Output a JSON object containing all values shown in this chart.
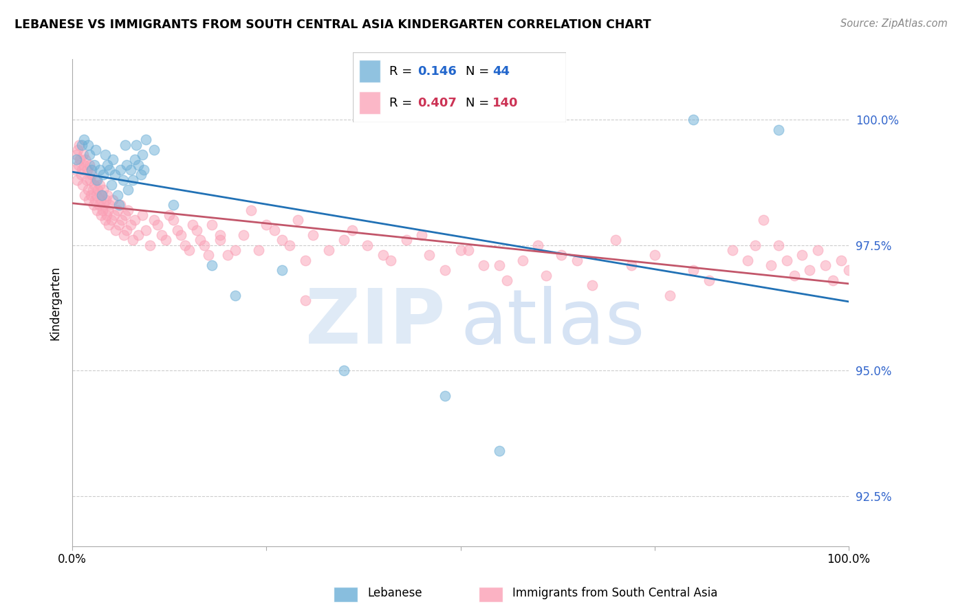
{
  "title": "LEBANESE VS IMMIGRANTS FROM SOUTH CENTRAL ASIA KINDERGARTEN CORRELATION CHART",
  "source": "Source: ZipAtlas.com",
  "ylabel": "Kindergarten",
  "y_ticks": [
    92.5,
    95.0,
    97.5,
    100.0
  ],
  "y_tick_labels": [
    "92.5%",
    "95.0%",
    "97.5%",
    "100.0%"
  ],
  "x_min": 0.0,
  "x_max": 100.0,
  "y_min": 91.5,
  "y_max": 101.2,
  "legend_blue_r": "0.146",
  "legend_blue_n": "44",
  "legend_pink_r": "0.407",
  "legend_pink_n": "140",
  "blue_color": "#6baed6",
  "pink_color": "#fa9fb5",
  "line_blue_color": "#2171b5",
  "line_pink_color": "#c2566a",
  "blue_scatter_x": [
    0.5,
    1.2,
    1.5,
    2.0,
    2.2,
    2.5,
    2.8,
    3.0,
    3.2,
    3.5,
    3.8,
    4.0,
    4.2,
    4.5,
    4.8,
    5.0,
    5.2,
    5.5,
    5.8,
    6.0,
    6.2,
    6.5,
    6.8,
    7.0,
    7.2,
    7.5,
    7.8,
    8.0,
    8.2,
    8.5,
    8.8,
    9.0,
    9.2,
    9.5,
    10.5,
    13.0,
    18.0,
    21.0,
    27.0,
    35.0,
    48.0,
    55.0,
    80.0,
    91.0
  ],
  "blue_scatter_y": [
    99.2,
    99.5,
    99.6,
    99.5,
    99.3,
    99.0,
    99.1,
    99.4,
    98.8,
    99.0,
    98.5,
    98.9,
    99.3,
    99.1,
    99.0,
    98.7,
    99.2,
    98.9,
    98.5,
    98.3,
    99.0,
    98.8,
    99.5,
    99.1,
    98.6,
    99.0,
    98.8,
    99.2,
    99.5,
    99.1,
    98.9,
    99.3,
    99.0,
    99.6,
    99.4,
    98.3,
    97.1,
    96.5,
    97.0,
    95.0,
    94.5,
    93.4,
    100.0,
    99.8
  ],
  "pink_scatter_x": [
    0.3,
    0.5,
    0.6,
    0.7,
    0.8,
    0.9,
    1.0,
    1.1,
    1.2,
    1.3,
    1.4,
    1.5,
    1.6,
    1.7,
    1.8,
    1.9,
    2.0,
    2.1,
    2.2,
    2.3,
    2.4,
    2.5,
    2.6,
    2.7,
    2.8,
    2.9,
    3.0,
    3.1,
    3.2,
    3.3,
    3.4,
    3.5,
    3.6,
    3.7,
    3.8,
    3.9,
    4.0,
    4.1,
    4.2,
    4.3,
    4.4,
    4.5,
    4.6,
    4.7,
    4.8,
    5.0,
    5.2,
    5.4,
    5.6,
    5.8,
    6.0,
    6.2,
    6.4,
    6.6,
    6.8,
    7.0,
    7.2,
    7.5,
    7.8,
    8.0,
    8.5,
    9.0,
    9.5,
    10.0,
    11.0,
    12.0,
    13.0,
    14.0,
    15.0,
    16.0,
    17.0,
    18.0,
    19.0,
    20.0,
    22.0,
    24.0,
    26.0,
    28.0,
    30.0,
    35.0,
    40.0,
    45.0,
    50.0,
    55.0,
    60.0,
    65.0,
    70.0,
    75.0,
    80.0,
    85.0,
    90.0,
    91.0,
    92.0,
    93.0,
    94.0,
    95.0,
    96.0,
    97.0,
    98.0,
    99.0,
    100.0,
    10.5,
    11.5,
    12.5,
    13.5,
    14.5,
    15.5,
    16.5,
    17.5,
    19.0,
    21.0,
    23.0,
    25.0,
    27.0,
    29.0,
    31.0,
    33.0,
    36.0,
    38.0,
    41.0,
    43.0,
    46.0,
    48.0,
    51.0,
    53.0,
    56.0,
    58.0,
    61.0,
    63.0,
    67.0,
    72.0,
    77.0,
    82.0,
    87.0,
    88.0,
    89.0,
    30.0
  ],
  "pink_scatter_y": [
    99.0,
    99.3,
    98.8,
    99.4,
    99.1,
    99.5,
    99.2,
    98.9,
    99.0,
    98.7,
    99.3,
    99.1,
    98.5,
    99.2,
    98.8,
    99.0,
    98.6,
    98.4,
    99.1,
    98.8,
    98.5,
    98.9,
    98.6,
    98.3,
    98.7,
    98.4,
    98.8,
    98.5,
    98.2,
    98.6,
    98.3,
    98.7,
    98.4,
    98.1,
    98.5,
    98.2,
    98.6,
    98.3,
    98.0,
    98.4,
    98.1,
    98.5,
    98.2,
    97.9,
    98.3,
    98.0,
    98.4,
    98.1,
    97.8,
    98.2,
    97.9,
    98.3,
    98.0,
    97.7,
    98.1,
    97.8,
    98.2,
    97.9,
    97.6,
    98.0,
    97.7,
    98.1,
    97.8,
    97.5,
    97.9,
    97.6,
    98.0,
    97.7,
    97.4,
    97.8,
    97.5,
    97.9,
    97.6,
    97.3,
    97.7,
    97.4,
    97.8,
    97.5,
    97.2,
    97.6,
    97.3,
    97.7,
    97.4,
    97.1,
    97.5,
    97.2,
    97.6,
    97.3,
    97.0,
    97.4,
    97.1,
    97.5,
    97.2,
    96.9,
    97.3,
    97.0,
    97.4,
    97.1,
    96.8,
    97.2,
    97.0,
    98.0,
    97.7,
    98.1,
    97.8,
    97.5,
    97.9,
    97.6,
    97.3,
    97.7,
    97.4,
    98.2,
    97.9,
    97.6,
    98.0,
    97.7,
    97.4,
    97.8,
    97.5,
    97.2,
    97.6,
    97.3,
    97.0,
    97.4,
    97.1,
    96.8,
    97.2,
    96.9,
    97.3,
    96.7,
    97.1,
    96.5,
    96.8,
    97.2,
    97.5,
    98.0,
    96.4
  ]
}
